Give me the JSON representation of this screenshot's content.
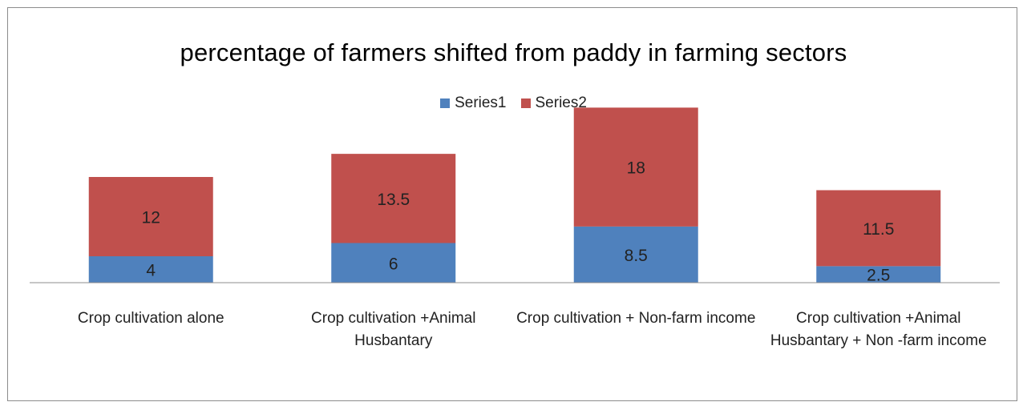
{
  "chart_data": {
    "type": "bar",
    "stacked": true,
    "title": "percentage of farmers shifted from paddy  in farming sectors",
    "categories": [
      "Crop cultivation alone",
      "Crop cultivation +Animal Husbantary",
      "Crop cultivation + Non-farm income",
      "Crop cultivation +Animal Husbantary + Non -farm income"
    ],
    "series": [
      {
        "name": "Series1",
        "values": [
          4,
          6,
          8.5,
          2.5
        ],
        "color": "#4f81bd"
      },
      {
        "name": "Series2",
        "values": [
          12,
          13.5,
          18,
          11.5
        ],
        "color": "#c0504d"
      }
    ],
    "data_labels": true,
    "legend_position": "top",
    "grid": false,
    "ylim": [
      0,
      30
    ]
  }
}
